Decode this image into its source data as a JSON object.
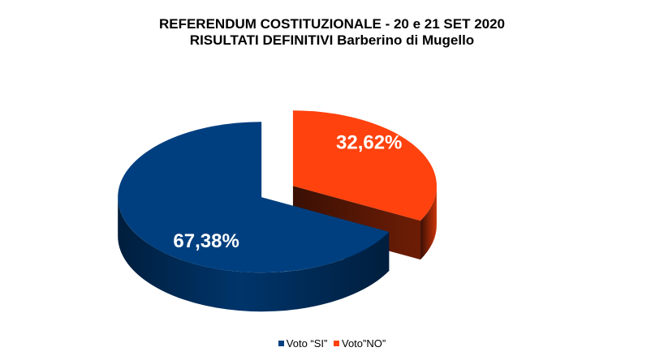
{
  "chart_data": {
    "type": "pie",
    "title": "REFERENDUM COSTITUZIONALE - 20 e 21 SET 2020",
    "subtitle": "RISULTATI DEFINITIVI Barberino di Mugello",
    "categories": [
      "Voto “SI”",
      "Voto”NO”"
    ],
    "values": [
      67.38,
      32.62
    ],
    "data_labels": [
      "67,38%",
      "32,62%"
    ],
    "colors": [
      "#003F7F",
      "#FF420E"
    ],
    "side_colors": [
      "#00264D",
      "#7A1F05"
    ],
    "style": "3d-exploded",
    "legend_position": "bottom"
  }
}
